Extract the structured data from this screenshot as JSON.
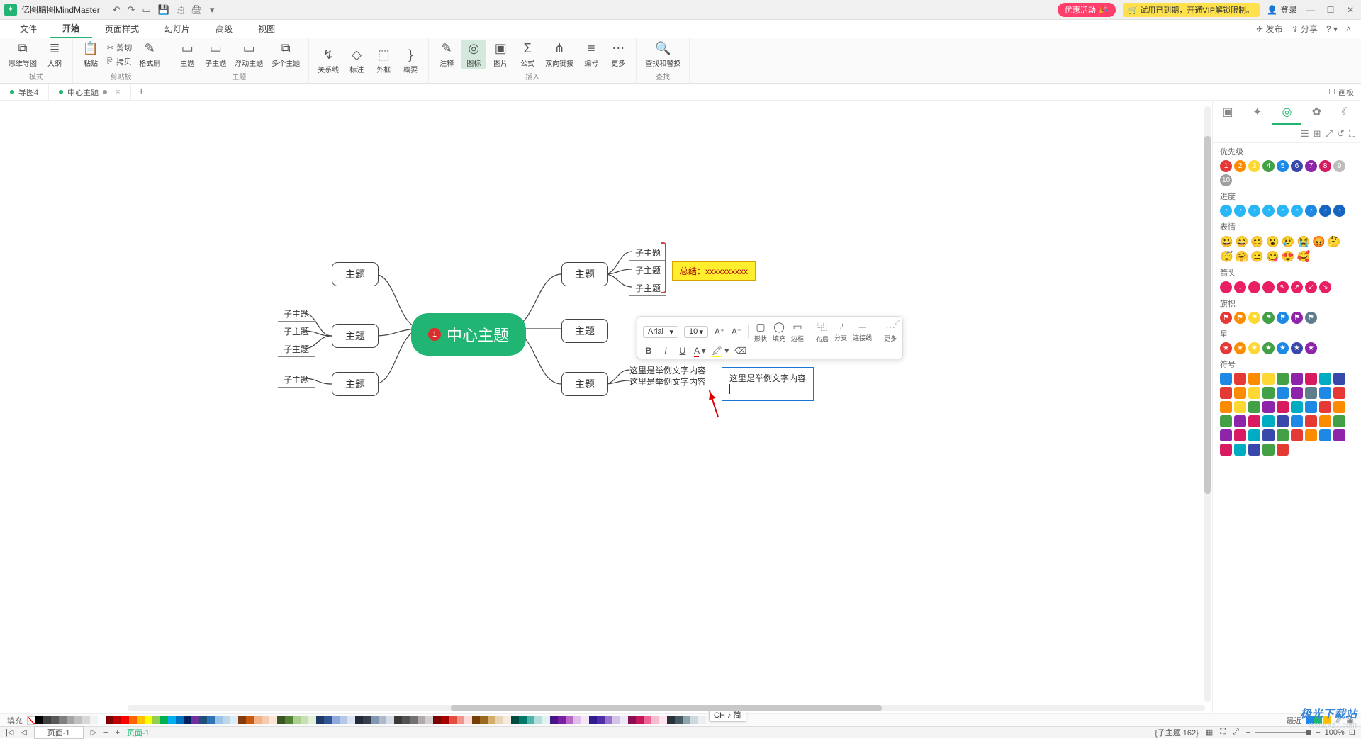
{
  "app": {
    "title": "亿图脑图MindMaster"
  },
  "titlebar_right": {
    "promo": "优惠活动",
    "vip": "🛒 试用已到期，开通VIP解锁限制。",
    "login": "登录"
  },
  "menu": {
    "tabs": [
      "文件",
      "开始",
      "页面样式",
      "幻灯片",
      "高级",
      "视图"
    ],
    "active_index": 1,
    "publish": "发布",
    "share": "分享"
  },
  "ribbon": {
    "groups": [
      {
        "label": "模式",
        "items": [
          {
            "name": "mindmap",
            "label": "思维导图",
            "ico": "⧉"
          },
          {
            "name": "outline",
            "label": "大纲",
            "ico": "≣"
          }
        ]
      },
      {
        "label": "剪贴板",
        "items": [
          {
            "name": "paste",
            "label": "粘贴",
            "ico": "📋"
          },
          {
            "name": "cut",
            "label": "剪切",
            "ico": "✂",
            "small": true
          },
          {
            "name": "copy",
            "label": "拷贝",
            "ico": "⎘",
            "small": true
          },
          {
            "name": "format-painter",
            "label": "格式刷",
            "ico": "✎"
          }
        ]
      },
      {
        "label": "主题",
        "items": [
          {
            "name": "topic",
            "label": "主题",
            "ico": "▭"
          },
          {
            "name": "subtopic",
            "label": "子主题",
            "ico": "▭"
          },
          {
            "name": "floating",
            "label": "浮动主题",
            "ico": "▭"
          },
          {
            "name": "multi",
            "label": "多个主题",
            "ico": "⧉"
          }
        ]
      },
      {
        "label": "",
        "items": [
          {
            "name": "relation",
            "label": "关系线",
            "ico": "↯"
          },
          {
            "name": "callout",
            "label": "标注",
            "ico": "◇"
          },
          {
            "name": "boundary",
            "label": "外框",
            "ico": "⬚"
          },
          {
            "name": "summary",
            "label": "概要",
            "ico": "}"
          }
        ]
      },
      {
        "label": "插入",
        "items": [
          {
            "name": "comment",
            "label": "注释",
            "ico": "✎"
          },
          {
            "name": "icon",
            "label": "图标",
            "ico": "◎",
            "active": true
          },
          {
            "name": "image",
            "label": "图片",
            "ico": "▣"
          },
          {
            "name": "formula",
            "label": "公式",
            "ico": "Σ"
          },
          {
            "name": "tree",
            "label": "双向链接",
            "ico": "⋔"
          },
          {
            "name": "number",
            "label": "编号",
            "ico": "≡"
          },
          {
            "name": "more",
            "label": "更多",
            "ico": "⋯"
          }
        ]
      },
      {
        "label": "查找",
        "items": [
          {
            "name": "find",
            "label": "查找和替换",
            "ico": "🔍"
          }
        ]
      }
    ]
  },
  "doctabs": {
    "tabs": [
      {
        "label": "导图4",
        "dirty": false
      },
      {
        "label": "中心主题",
        "dirty": true
      }
    ],
    "panel_label": "画板"
  },
  "mind": {
    "central": "中心主题",
    "priority_badge": "1",
    "topics_left": [
      "主题",
      "主题",
      "主题"
    ],
    "topics_right": [
      "主题",
      "主题",
      "主题"
    ],
    "sub_left_a": [
      "子主题",
      "子主题",
      "子主题"
    ],
    "sub_left_b": [
      "子主题"
    ],
    "sub_right_a": [
      "子主题",
      "子主题",
      "子主题"
    ],
    "callout_text": "总结：xxxxxxxxxx",
    "text_lines": [
      "这里是举例文字内容",
      "这里是举例文字内容"
    ],
    "floating_edit": "这里是举例文字内容"
  },
  "floatbar": {
    "font": "Arial",
    "size": "10",
    "inc": "A⁺",
    "dec": "A⁻",
    "bold": "B",
    "italic": "I",
    "underline": "U",
    "fontcolor": "A",
    "highlight": "🖍",
    "clear": "⌫",
    "shape": "形状",
    "fill": "填充",
    "border": "边框",
    "layout": "布局",
    "branch": "分支",
    "wire": "连接线",
    "more": "更多"
  },
  "rightpanel": {
    "tab_icons": [
      "▣",
      "✦",
      "◎",
      "✿",
      "☾"
    ],
    "active_tab": 2,
    "view_icons": [
      "☰",
      "⊞",
      "⤢",
      "↺",
      "⛶"
    ],
    "sections": [
      {
        "title": "优先级",
        "type": "num",
        "colors": [
          "#e53935",
          "#fb8c00",
          "#fdd835",
          "#43a047",
          "#1e88e5",
          "#3949ab",
          "#8e24aa",
          "#d81b60",
          "#bdbdbd",
          "#9e9e9e"
        ]
      },
      {
        "title": "进度",
        "type": "prog",
        "colors": [
          "#29b6f6",
          "#29b6f6",
          "#29b6f6",
          "#29b6f6",
          "#29b6f6",
          "#29b6f6",
          "#1e88e5",
          "#1565c0",
          "#1565c0"
        ]
      },
      {
        "title": "表情",
        "type": "emoji",
        "emojis": [
          "😀",
          "😄",
          "😊",
          "😮",
          "😢",
          "😭",
          "😡",
          "🤔",
          "😴",
          "🤗",
          "😐",
          "😋",
          "😍",
          "🥰"
        ]
      },
      {
        "title": "箭头",
        "type": "arrow",
        "colors": [
          "#e91e63",
          "#e91e63",
          "#e91e63",
          "#e91e63",
          "#e91e63",
          "#e91e63",
          "#e91e63",
          "#e91e63"
        ],
        "glyphs": [
          "↑",
          "↓",
          "←",
          "→",
          "↖",
          "↗",
          "↙",
          "↘"
        ]
      },
      {
        "title": "旗帜",
        "type": "flag",
        "colors": [
          "#e53935",
          "#fb8c00",
          "#fdd835",
          "#43a047",
          "#1e88e5",
          "#8e24aa",
          "#607d8b"
        ]
      },
      {
        "title": "星",
        "type": "star",
        "colors": [
          "#e53935",
          "#fb8c00",
          "#fdd835",
          "#43a047",
          "#1e88e5",
          "#3949ab",
          "#8e24aa"
        ]
      },
      {
        "title": "符号",
        "type": "sym",
        "colors": [
          "#1e88e5",
          "#e53935",
          "#fb8c00",
          "#fdd835",
          "#43a047",
          "#8e24aa",
          "#d81b60",
          "#00acc1",
          "#3949ab",
          "#e53935",
          "#fb8c00",
          "#fdd835",
          "#43a047",
          "#1e88e5",
          "#8e24aa",
          "#607d8b",
          "#1e88e5",
          "#e53935",
          "#fb8c00",
          "#fdd835",
          "#43a047",
          "#8e24aa",
          "#d81b60",
          "#00acc1",
          "#1e88e5",
          "#e53935",
          "#fb8c00",
          "#43a047",
          "#8e24aa",
          "#d81b60",
          "#00acc1",
          "#3949ab",
          "#1e88e5",
          "#e53935",
          "#fb8c00",
          "#43a047",
          "#8e24aa",
          "#d81b60",
          "#00acc1",
          "#3949ab",
          "#43a047",
          "#e53935",
          "#fb8c00",
          "#1e88e5",
          "#8e24aa",
          "#d81b60",
          "#00acc1",
          "#3949ab",
          "#43a047",
          "#e53935"
        ]
      }
    ]
  },
  "colorstrip": {
    "label": "填充",
    "recent_label": "最近",
    "colors": [
      "#000000",
      "#3f3f3f",
      "#595959",
      "#7f7f7f",
      "#a5a5a5",
      "#bfbfbf",
      "#d8d8d8",
      "#f2f2f2",
      "#ffffff",
      "#7f0000",
      "#c00000",
      "#ff0000",
      "#ff6600",
      "#ffc000",
      "#ffff00",
      "#92d050",
      "#00b050",
      "#00b0f0",
      "#0070c0",
      "#002060",
      "#7030a0",
      "#1f4e79",
      "#2e75b6",
      "#9dc3e6",
      "#bdd7ee",
      "#deebf7",
      "#833c0b",
      "#c55a11",
      "#f4b183",
      "#f8cbad",
      "#fbe5d6",
      "#385723",
      "#548235",
      "#a9d18e",
      "#c5e0b4",
      "#e2f0d9",
      "#1f3864",
      "#2f5597",
      "#8faadc",
      "#b4c7e7",
      "#dae3f3",
      "#222a35",
      "#333f50",
      "#8497b0",
      "#adb9ca",
      "#d6dce5",
      "#3b3838",
      "#525252",
      "#757171",
      "#afabab",
      "#d0cece",
      "#7b0000",
      "#a50000",
      "#e74c3c",
      "#f1948a",
      "#fadbd8",
      "#763f04",
      "#9c6a1f",
      "#d4ac6e",
      "#e8d5b5",
      "#f5ecdf",
      "#004d40",
      "#00796b",
      "#4db6ac",
      "#b2dfdb",
      "#e0f2f1",
      "#4a148c",
      "#7b1fa2",
      "#ba68c8",
      "#e1bee7",
      "#f3e5f5",
      "#311b92",
      "#512da8",
      "#9575cd",
      "#d1c4e9",
      "#ede7f6",
      "#880e4f",
      "#c2185b",
      "#f06292",
      "#f8bbd0",
      "#fce4ec",
      "#263238",
      "#455a64",
      "#90a4ae",
      "#cfd8dc",
      "#eceff1"
    ],
    "recent": [
      "#1e88e5",
      "#21b573",
      "#ffc000"
    ]
  },
  "statusbar": {
    "page_sel": "页面-1",
    "page_link": "页面-1",
    "ime": "CH ♪ 简",
    "sel_info": "{子主题 162}",
    "zoom": "100%"
  },
  "watermark": {
    "big": "极光下载站",
    "small": "www.xz7.com"
  }
}
